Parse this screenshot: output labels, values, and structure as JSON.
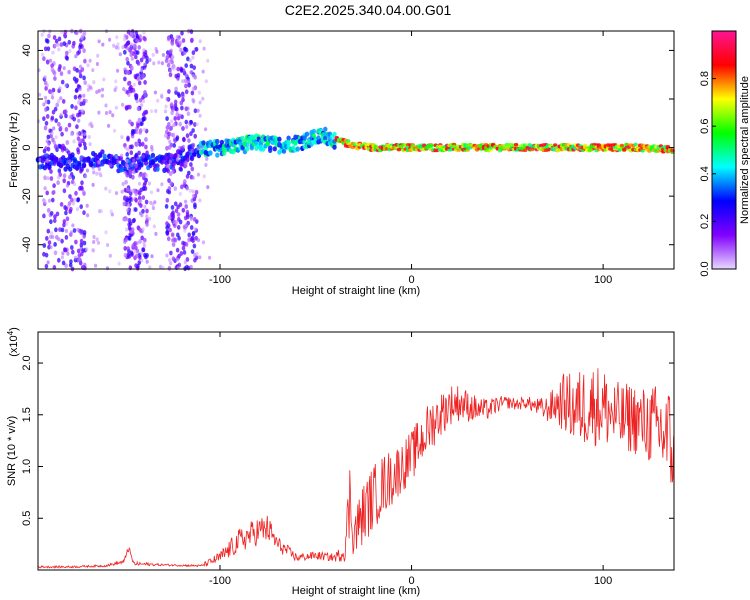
{
  "title": "C2E2.2025.340.04.00.G01",
  "chart_data": [
    {
      "type": "heatmap",
      "xlabel": "Height of straight line (km)",
      "ylabel": "Frequency (Hz)",
      "xlim": [
        -195,
        137
      ],
      "ylim": [
        -50,
        48
      ],
      "xticks": [
        -100,
        0,
        100
      ],
      "xtick_labels": [
        "-100",
        "0",
        "100"
      ],
      "yticks": [
        -40,
        -20,
        0,
        20,
        40
      ],
      "ytick_labels": [
        "-40",
        "-20",
        "0",
        "20",
        "40"
      ],
      "colorbar": {
        "label": "Normalized spectral amplitude",
        "range": [
          0,
          1
        ],
        "ticks": [
          0,
          0.2,
          0.4,
          0.6,
          0.8
        ],
        "tick_labels": [
          "0.0",
          "0.2",
          "0.4",
          "0.6",
          "0.8"
        ],
        "colors": [
          "#e8d8ff",
          "#8000ff",
          "#0000ff",
          "#00ffff",
          "#00ff00",
          "#ffff00",
          "#ff0000",
          "#ff1493"
        ]
      },
      "ridge": {
        "x": [
          -170,
          -160,
          -150,
          -140,
          -130,
          -120,
          -110,
          -100,
          -90,
          -80,
          -70,
          -60,
          -50,
          -45,
          -40,
          -30,
          -20,
          -10,
          0,
          20,
          40,
          60,
          80,
          100,
          120,
          137
        ],
        "freq": [
          -6,
          -4,
          -8,
          -5,
          -7,
          -3,
          -1,
          0,
          1,
          2,
          1,
          2,
          4,
          5,
          3,
          1,
          0,
          0,
          0,
          0,
          0,
          0,
          0,
          0,
          0,
          -1
        ]
      },
      "noise_bands_x": [
        [
          -192,
          -170
        ],
        [
          -150,
          -138
        ],
        [
          -128,
          -112
        ]
      ]
    },
    {
      "type": "line",
      "xlabel": "Height of straight line (km)",
      "ylabel": "SNR (10 * v/v)",
      "multiplier": "(x10",
      "multiplier_exp": "4",
      "xlim": [
        -195,
        137
      ],
      "ylim": [
        0,
        2.3
      ],
      "xticks": [
        -100,
        0,
        100
      ],
      "xtick_labels": [
        "-100",
        "0",
        "100"
      ],
      "yticks": [
        0.5,
        1.0,
        1.5,
        2.0
      ],
      "ytick_labels": [
        "0.5",
        "1.0",
        "1.5",
        "2.0"
      ],
      "color": "#ee2222",
      "series": {
        "name": "SNR",
        "x": [
          -195,
          -180,
          -160,
          -150,
          -148,
          -145,
          -130,
          -110,
          -100,
          -90,
          -80,
          -75,
          -70,
          -60,
          -50,
          -40,
          -35,
          -32,
          -30,
          -25,
          -20,
          -15,
          -10,
          -5,
          0,
          5,
          10,
          15,
          20,
          25,
          30,
          35,
          40,
          45,
          50,
          55,
          60,
          65,
          70,
          75,
          80,
          85,
          90,
          95,
          100,
          105,
          110,
          115,
          120,
          125,
          130,
          137
        ],
        "values": [
          0.03,
          0.03,
          0.04,
          0.08,
          0.22,
          0.06,
          0.05,
          0.04,
          0.12,
          0.28,
          0.38,
          0.4,
          0.25,
          0.12,
          0.14,
          0.12,
          0.18,
          0.7,
          0.35,
          0.55,
          0.7,
          0.82,
          0.9,
          1.0,
          1.1,
          1.25,
          1.4,
          1.5,
          1.6,
          1.62,
          1.58,
          1.55,
          1.55,
          1.6,
          1.62,
          1.6,
          1.62,
          1.58,
          1.55,
          1.6,
          1.62,
          1.55,
          1.58,
          1.6,
          1.58,
          1.5,
          1.45,
          1.48,
          1.42,
          1.4,
          1.35,
          1.2
        ],
        "spread": [
          0.01,
          0.01,
          0.01,
          0.02,
          0.04,
          0.02,
          0.01,
          0.01,
          0.06,
          0.12,
          0.14,
          0.14,
          0.08,
          0.04,
          0.04,
          0.04,
          0.1,
          0.45,
          0.25,
          0.3,
          0.32,
          0.3,
          0.28,
          0.25,
          0.25,
          0.25,
          0.25,
          0.22,
          0.2,
          0.18,
          0.15,
          0.12,
          0.1,
          0.08,
          0.06,
          0.06,
          0.06,
          0.08,
          0.12,
          0.18,
          0.3,
          0.35,
          0.4,
          0.4,
          0.4,
          0.35,
          0.35,
          0.35,
          0.35,
          0.4,
          0.45,
          0.6
        ]
      }
    }
  ]
}
